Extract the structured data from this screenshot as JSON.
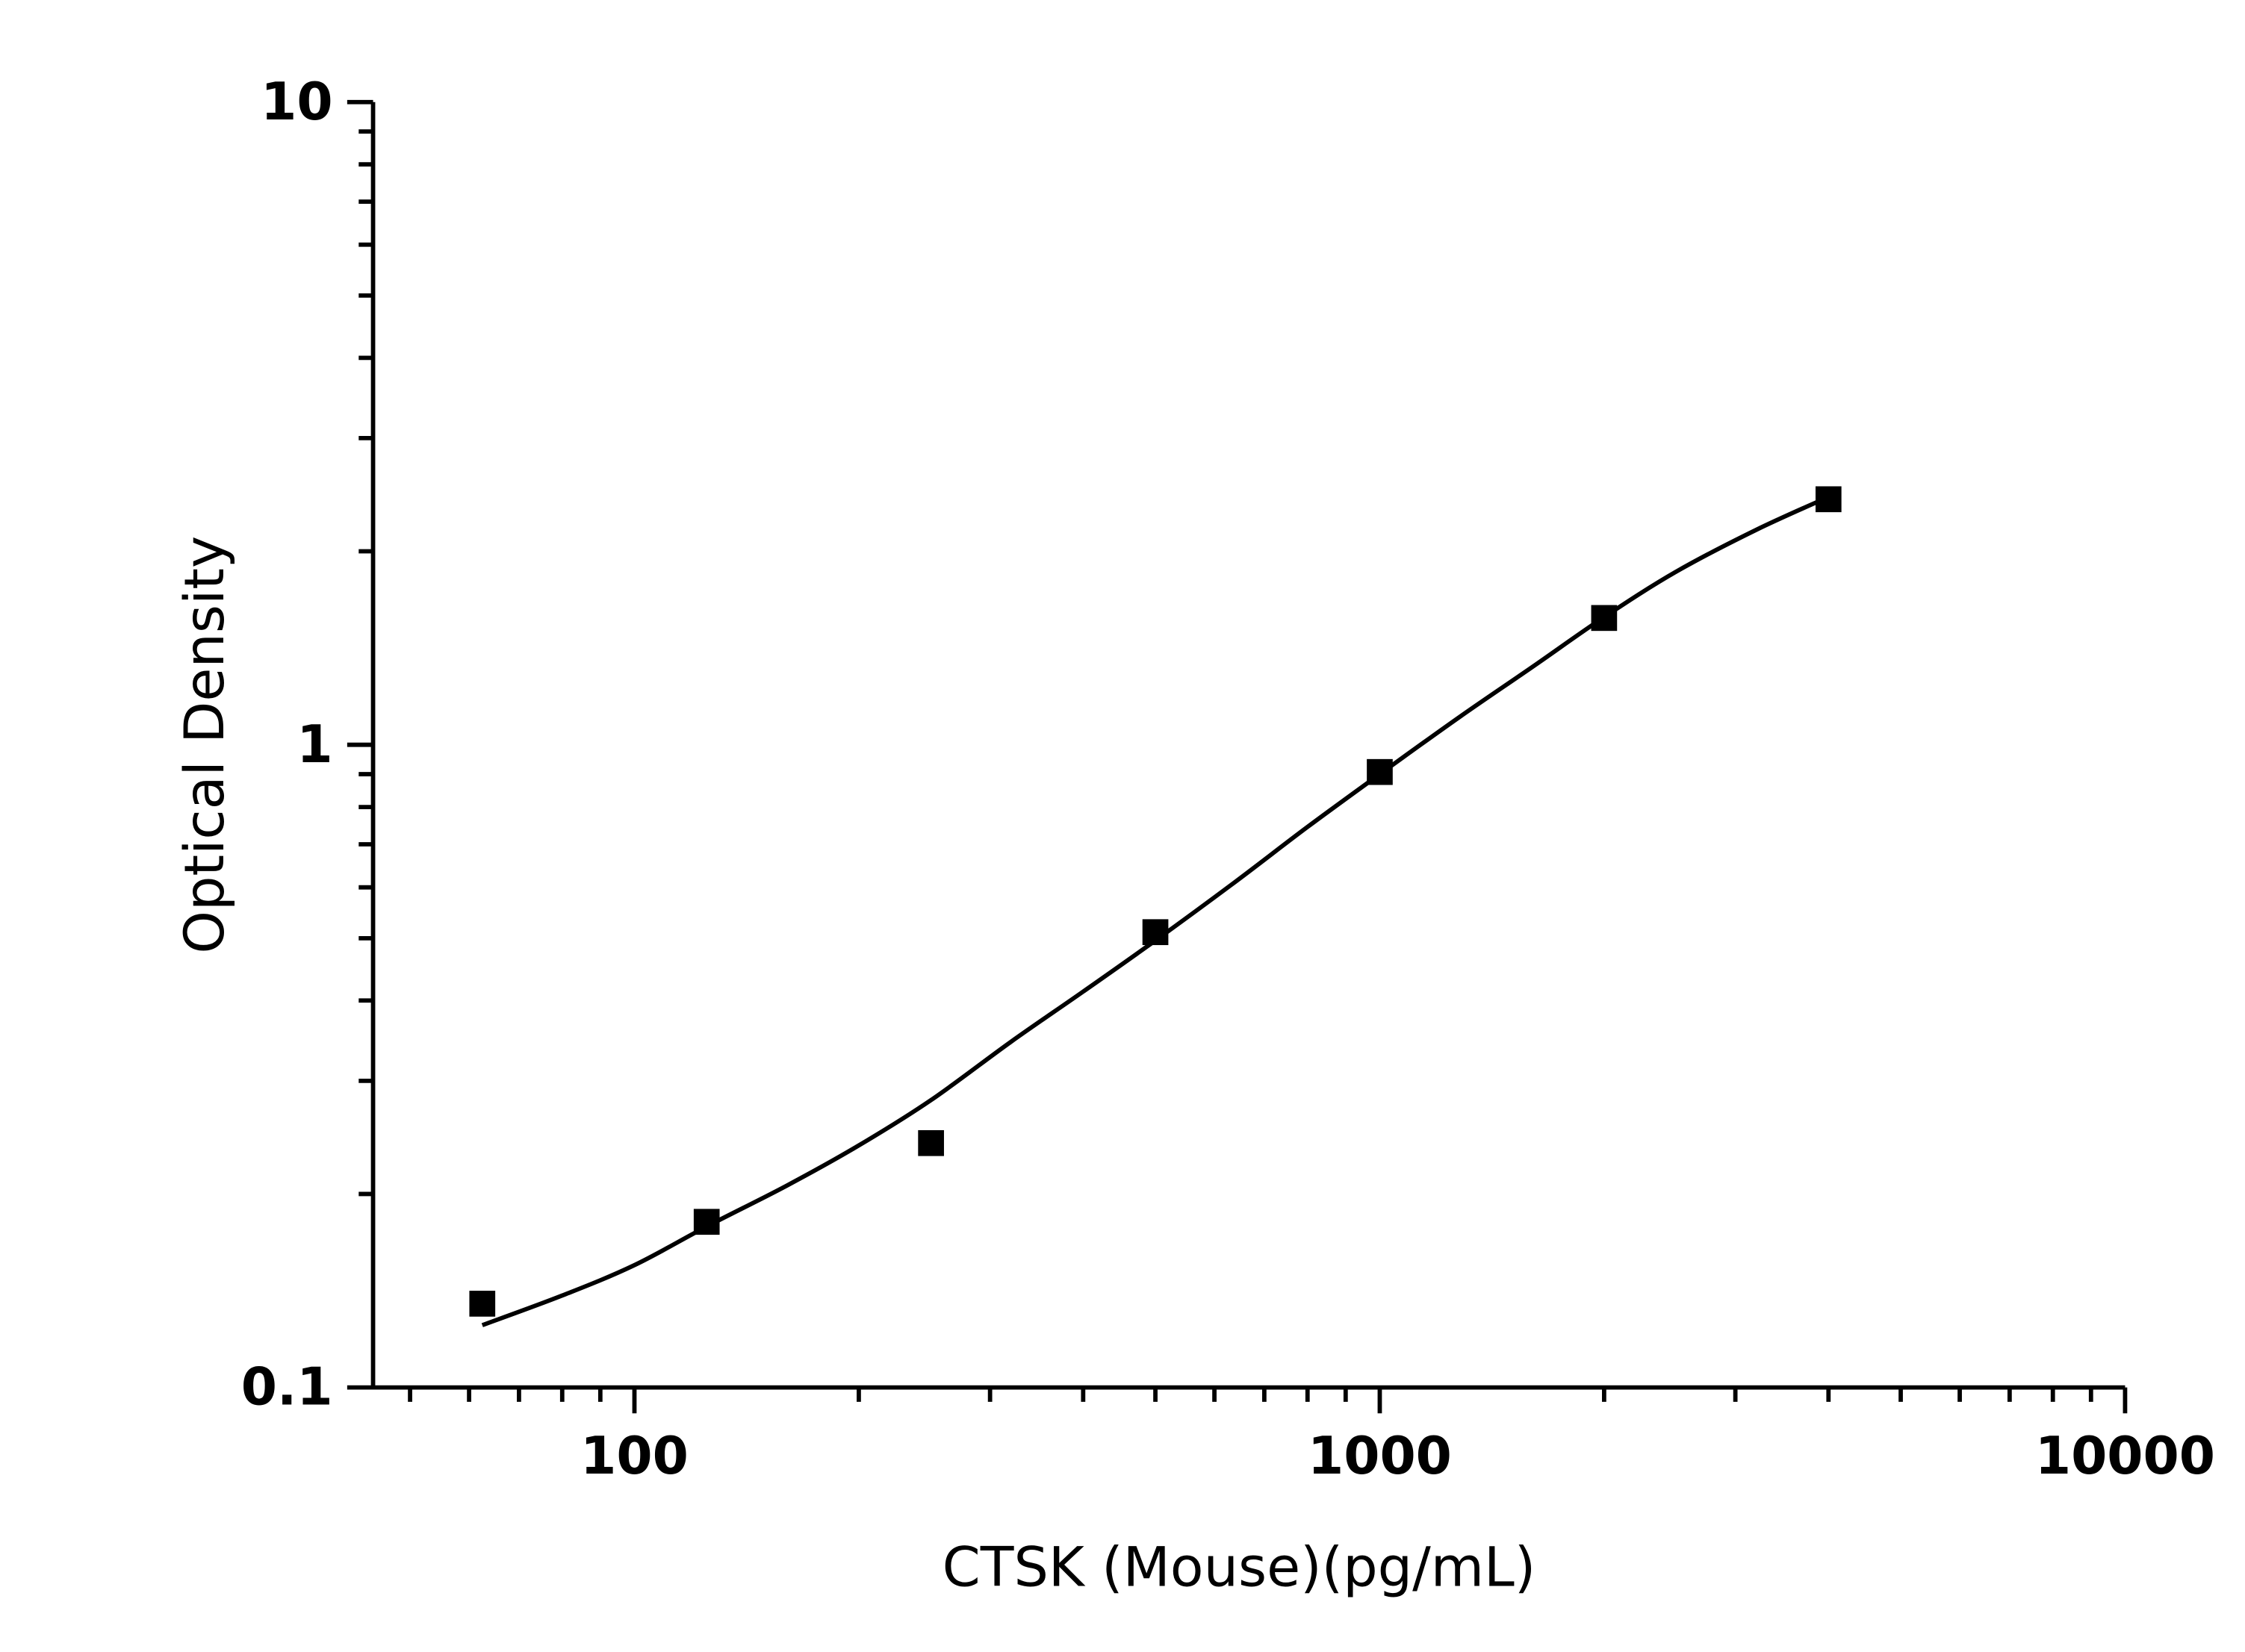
{
  "chart_data": {
    "type": "scatter",
    "title": "",
    "xlabel": "CTSK (Mouse)(pg/mL)",
    "ylabel": "Optical Density",
    "x_scale": "log",
    "y_scale": "log",
    "xlim": [
      44.6,
      10000
    ],
    "ylim": [
      0.1,
      10
    ],
    "x_ticks": [
      {
        "value": 100,
        "label": "100"
      },
      {
        "value": 1000,
        "label": "1000"
      },
      {
        "value": 10000,
        "label": "10000"
      }
    ],
    "y_ticks": [
      {
        "value": 0.1,
        "label": "0.1"
      },
      {
        "value": 1,
        "label": "1"
      },
      {
        "value": 10,
        "label": "10"
      }
    ],
    "grid": false,
    "marker": "square",
    "colors": {
      "points": "#000000",
      "curve": "#000000",
      "axes": "#000000"
    },
    "points": [
      {
        "x": 62.5,
        "y": 0.135
      },
      {
        "x": 125,
        "y": 0.181
      },
      {
        "x": 250,
        "y": 0.24
      },
      {
        "x": 500,
        "y": 0.511
      },
      {
        "x": 1000,
        "y": 0.907
      },
      {
        "x": 2000,
        "y": 1.575
      },
      {
        "x": 4000,
        "y": 2.41
      }
    ],
    "fit_curve": [
      {
        "x": 62.5,
        "y": 0.125
      },
      {
        "x": 80,
        "y": 0.139
      },
      {
        "x": 100,
        "y": 0.155
      },
      {
        "x": 125,
        "y": 0.178
      },
      {
        "x": 160,
        "y": 0.206
      },
      {
        "x": 200,
        "y": 0.238
      },
      {
        "x": 250,
        "y": 0.28
      },
      {
        "x": 320,
        "y": 0.345
      },
      {
        "x": 400,
        "y": 0.413
      },
      {
        "x": 500,
        "y": 0.496
      },
      {
        "x": 640,
        "y": 0.612
      },
      {
        "x": 800,
        "y": 0.745
      },
      {
        "x": 1000,
        "y": 0.9
      },
      {
        "x": 1280,
        "y": 1.105
      },
      {
        "x": 1600,
        "y": 1.32
      },
      {
        "x": 2000,
        "y": 1.58
      },
      {
        "x": 2500,
        "y": 1.86
      },
      {
        "x": 3200,
        "y": 2.16
      },
      {
        "x": 4000,
        "y": 2.43
      }
    ]
  }
}
